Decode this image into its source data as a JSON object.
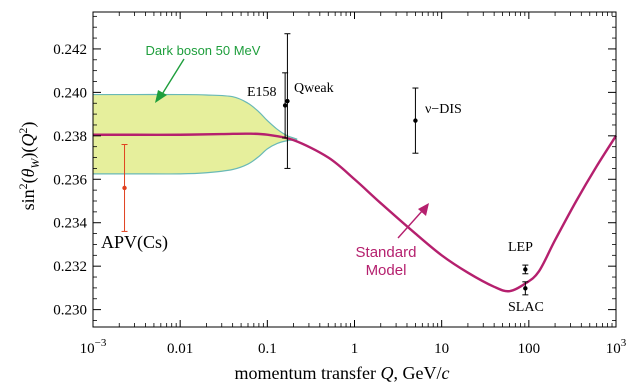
{
  "chart_data": {
    "type": "line",
    "xlabel_text": "momentum transfer ",
    "xlabel_var": "Q",
    "xlabel_units": ", GeV/",
    "xlabel_c": "c",
    "ylabel_fn": "sin",
    "ylabel_sup": "2",
    "ylabel_theta": "θ",
    "ylabel_sub": "W",
    "ylabel_Q": "Q",
    "ylabel_Qsup": "2",
    "x_scale": "log",
    "xlim": [
      0.001,
      1000
    ],
    "ylim": [
      0.2292,
      0.2437
    ],
    "x_ticks": [
      {
        "value": 0.001,
        "base": "10",
        "exp": "−3"
      },
      {
        "value": 0.01,
        "base": "0.01",
        "exp": ""
      },
      {
        "value": 0.1,
        "base": "0.1",
        "exp": ""
      },
      {
        "value": 1,
        "base": "1",
        "exp": ""
      },
      {
        "value": 10,
        "base": "10",
        "exp": ""
      },
      {
        "value": 100,
        "base": "100",
        "exp": ""
      },
      {
        "value": 1000,
        "base": "10",
        "exp": "3"
      }
    ],
    "y_ticks": [
      {
        "value": 0.23,
        "label": "0.230"
      },
      {
        "value": 0.232,
        "label": "0.232"
      },
      {
        "value": 0.234,
        "label": "0.234"
      },
      {
        "value": 0.236,
        "label": "0.236"
      },
      {
        "value": 0.238,
        "label": "0.238"
      },
      {
        "value": 0.24,
        "label": "0.240"
      },
      {
        "value": 0.242,
        "label": "0.242"
      }
    ],
    "standard_model": {
      "name": "Standard Model",
      "name_line1": "Standard",
      "name_line2": "Model",
      "color": "#b5206e",
      "x": [
        0.001,
        0.003,
        0.01,
        0.03,
        0.06,
        0.1,
        0.2,
        0.5,
        1,
        2,
        5,
        10,
        20,
        40,
        60,
        91,
        130,
        200,
        350,
        600,
        1000
      ],
      "y": [
        0.23805,
        0.23805,
        0.23805,
        0.23808,
        0.2381,
        0.23805,
        0.2378,
        0.237,
        0.236,
        0.2349,
        0.2335,
        0.2325,
        0.2317,
        0.23105,
        0.23085,
        0.2312,
        0.23175,
        0.2332,
        0.235,
        0.2366,
        0.238
      ]
    },
    "dark_boson": {
      "name": "Dark boson 50 MeV",
      "band_color": "#e6ef9c",
      "edge_color": "#69b9b6",
      "label_color": "#1e9e3c",
      "x": [
        0.001,
        0.003,
        0.01,
        0.02,
        0.04,
        0.06,
        0.08,
        0.1,
        0.13,
        0.17,
        0.22
      ],
      "upper": [
        0.2399,
        0.2399,
        0.2399,
        0.23988,
        0.2398,
        0.2395,
        0.2391,
        0.2387,
        0.2383,
        0.238,
        0.23785
      ],
      "lower": [
        0.23625,
        0.23625,
        0.23625,
        0.2363,
        0.23645,
        0.2367,
        0.23705,
        0.2374,
        0.23765,
        0.23778,
        0.23782
      ]
    },
    "measurements": [
      {
        "name": "APV(Cs)",
        "x": 0.0023,
        "y": 0.2356,
        "err": 0.002,
        "color": "#e0401f"
      },
      {
        "name": "E158",
        "x": 0.16,
        "y": 0.2394,
        "err": 0.0015,
        "color": "#000000"
      },
      {
        "name": "Qweak",
        "x": 0.17,
        "y": 0.2396,
        "err": 0.0031,
        "color": "#000000"
      },
      {
        "name": "ν−DIS",
        "x": 5,
        "y": 0.2387,
        "err": 0.0015,
        "color": "#000000"
      },
      {
        "name": "LEP",
        "x": 91.19,
        "y": 0.23185,
        "err": 0.0002,
        "color": "#000000"
      },
      {
        "name": "SLAC",
        "x": 91.19,
        "y": 0.23098,
        "err": 0.0003,
        "color": "#000000"
      }
    ]
  }
}
